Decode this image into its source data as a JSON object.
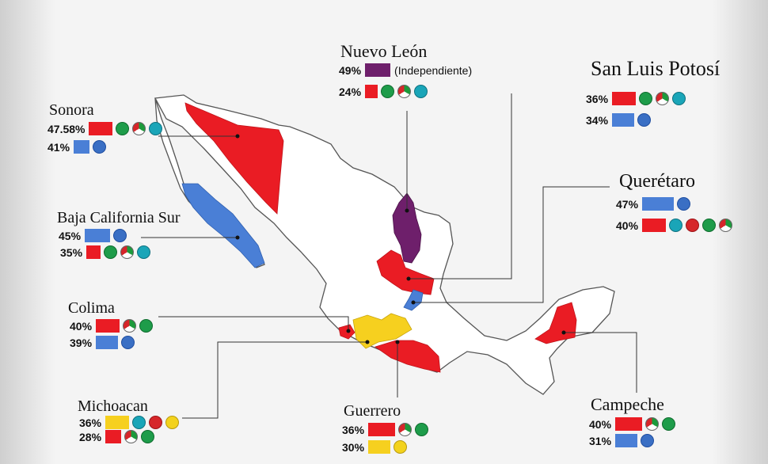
{
  "colors": {
    "pri": "#ea1c24",
    "pan": "#4a7fd6",
    "indep": "#6e1f6b",
    "prd": "#f6d01f",
    "outline": "#555555",
    "leader": "#333333"
  },
  "states": {
    "sonora": {
      "name": "Sonora",
      "results": [
        {
          "pct": "47.58%",
          "party": "pri",
          "logos": [
            "pvem",
            "pri",
            "pna"
          ]
        },
        {
          "pct": "41%",
          "party": "pan",
          "logos": [
            "pan"
          ]
        }
      ]
    },
    "bcs": {
      "name": "Baja California Sur",
      "results": [
        {
          "pct": "45%",
          "party": "pan",
          "logos": [
            "pan"
          ]
        },
        {
          "pct": "35%",
          "party": "pri",
          "logos": [
            "pvem",
            "pri",
            "pna"
          ]
        }
      ]
    },
    "colima": {
      "name": "Colima",
      "results": [
        {
          "pct": "40%",
          "party": "pri",
          "logos": [
            "pri",
            "pvem"
          ]
        },
        {
          "pct": "39%",
          "party": "pan",
          "logos": [
            "pan"
          ]
        }
      ]
    },
    "michoacan": {
      "name": "Michoacan",
      "results": [
        {
          "pct": "36%",
          "party": "prd",
          "logos": [
            "pna",
            "pt",
            "prd"
          ]
        },
        {
          "pct": "28%",
          "party": "pri",
          "logos": [
            "pri",
            "pvem"
          ]
        }
      ]
    },
    "nuevo_leon": {
      "name": "Nuevo León",
      "results": [
        {
          "pct": "49%",
          "party": "indep",
          "note": "(Independiente)",
          "logos": []
        },
        {
          "pct": "24%",
          "party": "pri",
          "logos": [
            "pvem",
            "pri",
            "pna"
          ]
        }
      ]
    },
    "guerrero": {
      "name": "Guerrero",
      "results": [
        {
          "pct": "36%",
          "party": "pri",
          "logos": [
            "pri",
            "pvem"
          ]
        },
        {
          "pct": "30%",
          "party": "prd",
          "logos": [
            "prd"
          ]
        }
      ]
    },
    "slp": {
      "name": "San Luis Potosí",
      "results": [
        {
          "pct": "36%",
          "party": "pri",
          "logos": [
            "pvem",
            "pri",
            "pna"
          ]
        },
        {
          "pct": "34%",
          "party": "pan",
          "logos": [
            "pan"
          ]
        }
      ]
    },
    "queretaro": {
      "name": "Querétaro",
      "results": [
        {
          "pct": "47%",
          "party": "pan",
          "logos": [
            "pan"
          ]
        },
        {
          "pct": "40%",
          "party": "pri",
          "logos": [
            "pna",
            "pt",
            "pvem",
            "pri"
          ]
        }
      ]
    },
    "campeche": {
      "name": "Campeche",
      "results": [
        {
          "pct": "40%",
          "party": "pri",
          "logos": [
            "pri",
            "pvem"
          ]
        },
        {
          "pct": "31%",
          "party": "pan",
          "logos": [
            "pan"
          ]
        }
      ]
    }
  }
}
